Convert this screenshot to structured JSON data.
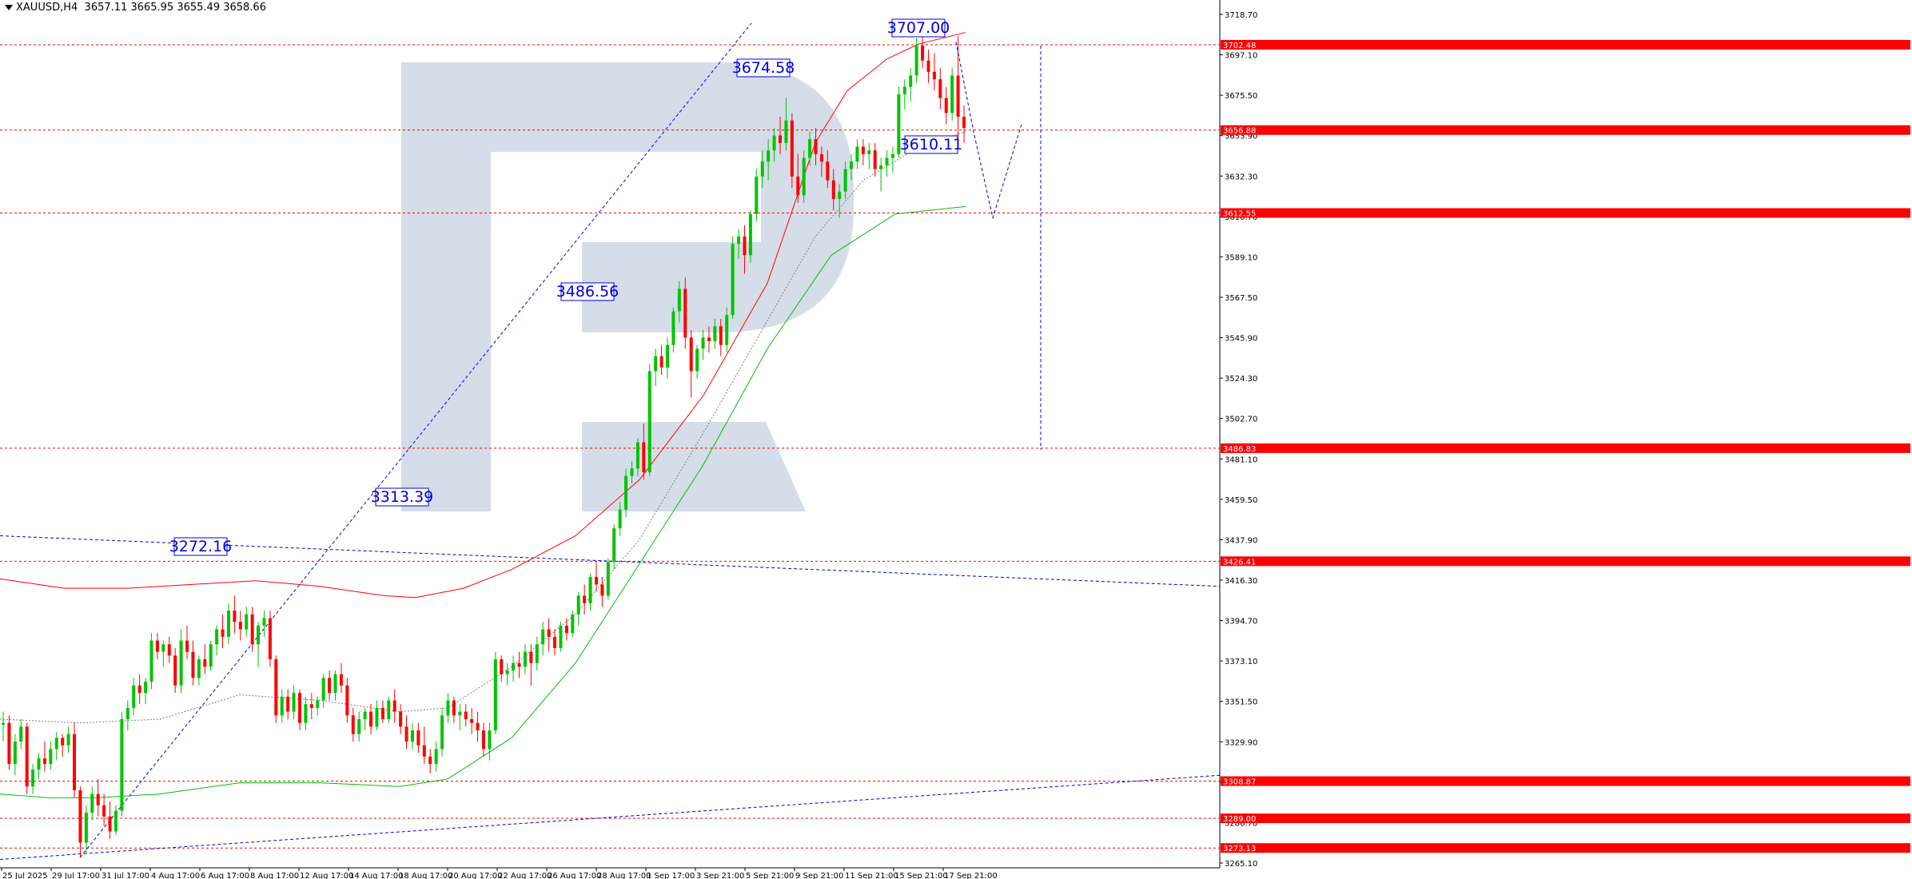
{
  "header": {
    "symbol": "XAUUSD,H4",
    "ohlc": "3657.11 3665.95 3655.49 3658.66"
  },
  "colors": {
    "bull": "#00c400",
    "bear": "#ff0000",
    "grid": "#ff0000",
    "annotation": "#0000dd",
    "logo": "#d5dde9",
    "upper_band": "#ff0000",
    "lower_band": "#00c000"
  },
  "chart_data": {
    "type": "candlestick",
    "title": "",
    "y_ticks": [
      "3718.70",
      "3697.10",
      "3675.50",
      "3653.90",
      "3632.30",
      "3610.70",
      "3589.10",
      "3567.50",
      "3545.90",
      "3524.30",
      "3502.70",
      "3481.10",
      "3459.50",
      "3437.90",
      "3416.30",
      "3394.70",
      "3373.10",
      "3351.50",
      "3329.90",
      "3308.30",
      "3286.70",
      "3265.10"
    ],
    "y_tick_values": [
      3718.7,
      3697.1,
      3675.5,
      3653.9,
      3632.3,
      3610.7,
      3589.1,
      3567.5,
      3545.9,
      3524.3,
      3502.7,
      3481.1,
      3459.5,
      3437.9,
      3416.3,
      3394.7,
      3373.1,
      3351.5,
      3329.9,
      3308.3,
      3286.7,
      3265.1
    ],
    "ylim": [
      3258,
      3728
    ],
    "x_ticks": [
      "25 Jul 2025",
      "29 Jul 17:00",
      "31 Jul 17:00",
      "4 Aug 17:00",
      "6 Aug 17:00",
      "8 Aug 17:00",
      "12 Aug 17:00",
      "14 Aug 17:00",
      "18 Aug 17:00",
      "20 Aug 17:00",
      "22 Aug 17:00",
      "26 Aug 17:00",
      "28 Aug 17:00",
      "1 Sep 17:00",
      "3 Sep 21:00",
      "5 Sep 21:00",
      "9 Sep 21:00",
      "11 Sep 21:00",
      "15 Sep 21:00",
      "17 Sep 21:00"
    ],
    "price_levels": [
      {
        "label": "3702.48",
        "value": 3702.48
      },
      {
        "label": "3656.88",
        "value": 3656.88
      },
      {
        "label": "3612.55",
        "value": 3612.55
      },
      {
        "label": "3486.83",
        "value": 3486.83
      },
      {
        "label": "3426.41",
        "value": 3426.41
      },
      {
        "label": "3308.87",
        "value": 3308.87
      },
      {
        "label": "3289.00",
        "value": 3289.0
      },
      {
        "label": "3273.13",
        "value": 3273.13
      }
    ],
    "callouts": [
      {
        "label": "3707.00",
        "value": 3707.0
      },
      {
        "label": "3674.58",
        "value": 3674.58
      },
      {
        "label": "3610.11",
        "value": 3610.11
      },
      {
        "label": "3486.56",
        "value": 3486.56
      },
      {
        "label": "3313.39",
        "value": 3313.39
      },
      {
        "label": "3272.16",
        "value": 3272.16
      }
    ],
    "candles": [
      [
        3339,
        3346,
        3330,
        3340
      ],
      [
        3340,
        3344,
        3315,
        3318
      ],
      [
        3318,
        3334,
        3312,
        3330
      ],
      [
        3330,
        3342,
        3326,
        3338
      ],
      [
        3338,
        3340,
        3302,
        3306
      ],
      [
        3306,
        3318,
        3302,
        3315
      ],
      [
        3315,
        3324,
        3310,
        3321
      ],
      [
        3321,
        3330,
        3314,
        3318
      ],
      [
        3318,
        3330,
        3315,
        3326
      ],
      [
        3326,
        3335,
        3320,
        3332
      ],
      [
        3332,
        3334,
        3322,
        3328
      ],
      [
        3328,
        3338,
        3324,
        3334
      ],
      [
        3334,
        3340,
        3300,
        3304
      ],
      [
        3304,
        3306,
        3268,
        3276
      ],
      [
        3276,
        3296,
        3270,
        3292
      ],
      [
        3292,
        3306,
        3288,
        3302
      ],
      [
        3302,
        3310,
        3290,
        3296
      ],
      [
        3296,
        3302,
        3285,
        3290
      ],
      [
        3290,
        3298,
        3278,
        3282
      ],
      [
        3282,
        3296,
        3280,
        3293
      ],
      [
        3293,
        3346,
        3290,
        3342
      ],
      [
        3342,
        3352,
        3336,
        3348
      ],
      [
        3348,
        3364,
        3344,
        3360
      ],
      [
        3360,
        3366,
        3350,
        3356
      ],
      [
        3356,
        3364,
        3350,
        3362
      ],
      [
        3362,
        3388,
        3358,
        3384
      ],
      [
        3384,
        3388,
        3374,
        3378
      ],
      [
        3378,
        3384,
        3370,
        3382
      ],
      [
        3382,
        3386,
        3372,
        3376
      ],
      [
        3376,
        3380,
        3356,
        3360
      ],
      [
        3360,
        3390,
        3356,
        3384
      ],
      [
        3384,
        3392,
        3374,
        3378
      ],
      [
        3378,
        3384,
        3360,
        3364
      ],
      [
        3364,
        3376,
        3360,
        3374
      ],
      [
        3374,
        3382,
        3366,
        3370
      ],
      [
        3370,
        3384,
        3368,
        3382
      ],
      [
        3382,
        3392,
        3376,
        3390
      ],
      [
        3390,
        3398,
        3380,
        3386
      ],
      [
        3386,
        3404,
        3382,
        3400
      ],
      [
        3400,
        3408,
        3388,
        3394
      ],
      [
        3394,
        3400,
        3384,
        3390
      ],
      [
        3390,
        3402,
        3386,
        3398
      ],
      [
        3398,
        3402,
        3378,
        3382
      ],
      [
        3382,
        3394,
        3370,
        3392
      ],
      [
        3392,
        3400,
        3386,
        3396
      ],
      [
        3396,
        3400,
        3370,
        3374
      ],
      [
        3374,
        3376,
        3340,
        3344
      ],
      [
        3344,
        3358,
        3340,
        3354
      ],
      [
        3354,
        3358,
        3342,
        3346
      ],
      [
        3346,
        3360,
        3342,
        3356
      ],
      [
        3356,
        3358,
        3336,
        3340
      ],
      [
        3340,
        3354,
        3336,
        3350
      ],
      [
        3350,
        3356,
        3342,
        3348
      ],
      [
        3348,
        3354,
        3344,
        3352
      ],
      [
        3352,
        3366,
        3348,
        3364
      ],
      [
        3364,
        3368,
        3352,
        3356
      ],
      [
        3356,
        3368,
        3352,
        3366
      ],
      [
        3366,
        3372,
        3356,
        3360
      ],
      [
        3360,
        3364,
        3340,
        3344
      ],
      [
        3344,
        3348,
        3330,
        3334
      ],
      [
        3334,
        3346,
        3330,
        3342
      ],
      [
        3342,
        3348,
        3336,
        3346
      ],
      [
        3346,
        3350,
        3334,
        3338
      ],
      [
        3338,
        3352,
        3336,
        3348
      ],
      [
        3348,
        3352,
        3340,
        3342
      ],
      [
        3342,
        3354,
        3340,
        3352
      ],
      [
        3352,
        3358,
        3340,
        3346
      ],
      [
        3346,
        3350,
        3334,
        3338
      ],
      [
        3338,
        3344,
        3326,
        3330
      ],
      [
        3330,
        3340,
        3326,
        3336
      ],
      [
        3336,
        3340,
        3324,
        3328
      ],
      [
        3328,
        3338,
        3318,
        3322
      ],
      [
        3322,
        3326,
        3313,
        3318
      ],
      [
        3318,
        3330,
        3314,
        3326
      ],
      [
        3326,
        3348,
        3322,
        3344
      ],
      [
        3344,
        3356,
        3340,
        3352
      ],
      [
        3352,
        3354,
        3340,
        3344
      ],
      [
        3344,
        3350,
        3336,
        3346
      ],
      [
        3346,
        3350,
        3338,
        3342
      ],
      [
        3342,
        3348,
        3334,
        3340
      ],
      [
        3340,
        3346,
        3330,
        3336
      ],
      [
        3336,
        3340,
        3322,
        3326
      ],
      [
        3326,
        3340,
        3320,
        3336
      ],
      [
        3336,
        3378,
        3334,
        3374
      ],
      [
        3374,
        3376,
        3362,
        3366
      ],
      [
        3366,
        3372,
        3360,
        3368
      ],
      [
        3368,
        3376,
        3362,
        3372
      ],
      [
        3372,
        3378,
        3364,
        3370
      ],
      [
        3370,
        3382,
        3366,
        3378
      ],
      [
        3378,
        3382,
        3360,
        3372
      ],
      [
        3372,
        3386,
        3368,
        3382
      ],
      [
        3382,
        3394,
        3376,
        3390
      ],
      [
        3390,
        3396,
        3378,
        3386
      ],
      [
        3386,
        3390,
        3376,
        3380
      ],
      [
        3380,
        3394,
        3378,
        3392
      ],
      [
        3392,
        3396,
        3384,
        3388
      ],
      [
        3388,
        3400,
        3386,
        3398
      ],
      [
        3398,
        3410,
        3392,
        3408
      ],
      [
        3408,
        3414,
        3398,
        3404
      ],
      [
        3404,
        3420,
        3400,
        3418
      ],
      [
        3418,
        3426,
        3410,
        3414
      ],
      [
        3414,
        3418,
        3402,
        3408
      ],
      [
        3408,
        3428,
        3406,
        3426
      ],
      [
        3426,
        3446,
        3422,
        3444
      ],
      [
        3444,
        3458,
        3440,
        3454
      ],
      [
        3454,
        3476,
        3450,
        3472
      ],
      [
        3472,
        3480,
        3468,
        3476
      ],
      [
        3476,
        3492,
        3472,
        3490
      ],
      [
        3490,
        3500,
        3470,
        3474
      ],
      [
        3474,
        3532,
        3472,
        3528
      ],
      [
        3528,
        3540,
        3520,
        3536
      ],
      [
        3536,
        3542,
        3526,
        3530
      ],
      [
        3530,
        3546,
        3524,
        3542
      ],
      [
        3542,
        3562,
        3538,
        3560
      ],
      [
        3560,
        3576,
        3554,
        3572
      ],
      [
        3572,
        3578,
        3540,
        3546
      ],
      [
        3546,
        3550,
        3514,
        3528
      ],
      [
        3528,
        3542,
        3524,
        3540
      ],
      [
        3540,
        3550,
        3534,
        3546
      ],
      [
        3546,
        3552,
        3538,
        3544
      ],
      [
        3544,
        3556,
        3540,
        3552
      ],
      [
        3552,
        3556,
        3536,
        3542
      ],
      [
        3542,
        3562,
        3538,
        3558
      ],
      [
        3558,
        3600,
        3556,
        3596
      ],
      [
        3596,
        3604,
        3588,
        3600
      ],
      [
        3600,
        3606,
        3580,
        3590
      ],
      [
        3590,
        3614,
        3586,
        3612
      ],
      [
        3612,
        3636,
        3608,
        3632
      ],
      [
        3632,
        3646,
        3626,
        3640
      ],
      [
        3640,
        3652,
        3630,
        3646
      ],
      [
        3646,
        3658,
        3640,
        3654
      ],
      [
        3654,
        3664,
        3644,
        3650
      ],
      [
        3650,
        3674,
        3646,
        3662
      ],
      [
        3662,
        3666,
        3626,
        3632
      ],
      [
        3632,
        3644,
        3618,
        3622
      ],
      [
        3622,
        3646,
        3618,
        3642
      ],
      [
        3642,
        3656,
        3638,
        3652
      ],
      [
        3652,
        3658,
        3638,
        3644
      ],
      [
        3644,
        3648,
        3632,
        3640
      ],
      [
        3640,
        3646,
        3626,
        3630
      ],
      [
        3630,
        3636,
        3614,
        3620
      ],
      [
        3620,
        3628,
        3610,
        3624
      ],
      [
        3624,
        3640,
        3620,
        3636
      ],
      [
        3636,
        3644,
        3630,
        3640
      ],
      [
        3640,
        3652,
        3636,
        3648
      ],
      [
        3648,
        3652,
        3638,
        3644
      ],
      [
        3644,
        3650,
        3636,
        3646
      ],
      [
        3646,
        3650,
        3632,
        3636
      ],
      [
        3636,
        3642,
        3624,
        3638
      ],
      [
        3638,
        3646,
        3632,
        3642
      ],
      [
        3642,
        3648,
        3634,
        3644
      ],
      [
        3644,
        3680,
        3642,
        3676
      ],
      [
        3676,
        3684,
        3668,
        3680
      ],
      [
        3680,
        3690,
        3672,
        3686
      ],
      [
        3686,
        3706,
        3682,
        3702
      ],
      [
        3702,
        3707,
        3690,
        3694
      ],
      [
        3694,
        3700,
        3682,
        3688
      ],
      [
        3688,
        3698,
        3678,
        3684
      ],
      [
        3684,
        3690,
        3668,
        3674
      ],
      [
        3674,
        3680,
        3660,
        3666
      ],
      [
        3666,
        3690,
        3662,
        3686
      ],
      [
        3686,
        3707,
        3652,
        3664
      ],
      [
        3664,
        3670,
        3650,
        3658
      ]
    ],
    "forecast": [
      [
        1218,
        3656
      ],
      [
        1242,
        3610
      ],
      [
        1258,
        3632
      ],
      [
        1278,
        3660
      ]
    ],
    "forecast_target": [
      [
        1302,
        3702
      ],
      [
        1302,
        3486
      ]
    ]
  }
}
